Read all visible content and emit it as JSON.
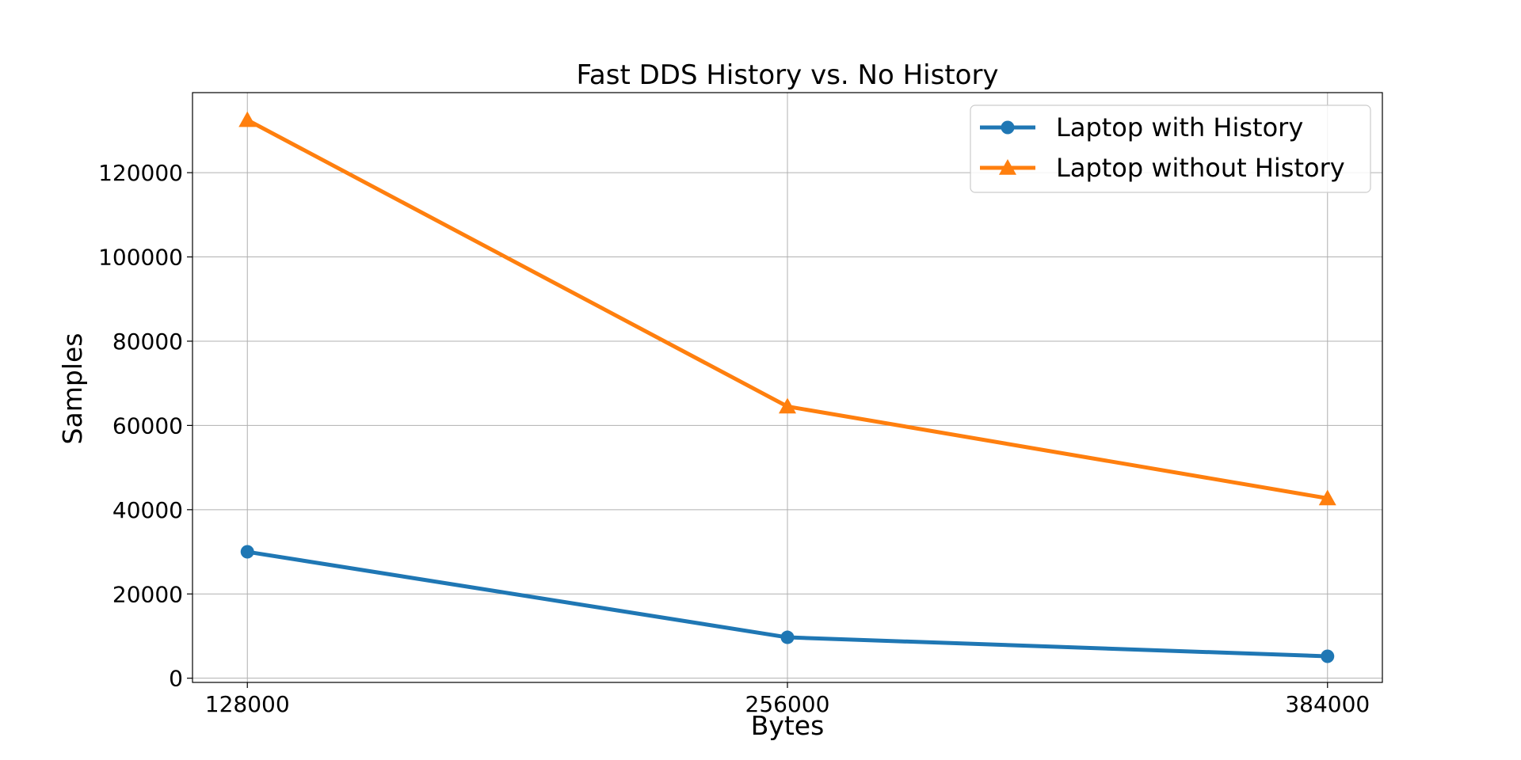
{
  "chart_data": {
    "type": "line",
    "title": "Fast DDS History vs. No History",
    "xlabel": "Bytes",
    "ylabel": "Samples",
    "x": [
      128000,
      256000,
      384000
    ],
    "x_tick_labels": [
      "128000",
      "256000",
      "384000"
    ],
    "xlim": [
      115000,
      397000
    ],
    "ylim": [
      -1000,
      139000
    ],
    "y_ticks": [
      0,
      20000,
      40000,
      60000,
      80000,
      100000,
      120000
    ],
    "y_tick_labels": [
      "0",
      "20000",
      "40000",
      "60000",
      "80000",
      "100000",
      "120000"
    ],
    "grid": true,
    "legend_position": "top-right",
    "series": [
      {
        "name": "Laptop with History",
        "values": [
          30000,
          9700,
          5200
        ],
        "color": "#1f77b4",
        "marker": "circle"
      },
      {
        "name": "Laptop without History",
        "values": [
          132500,
          64500,
          42700
        ],
        "color": "#ff7f0e",
        "marker": "triangle"
      }
    ]
  }
}
